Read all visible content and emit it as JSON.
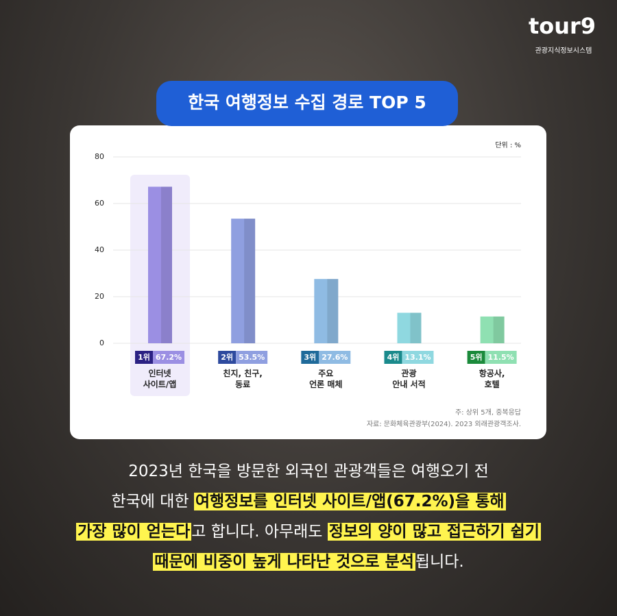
{
  "logo": {
    "brand": "tour9",
    "tagline": "관광지식정보시스템"
  },
  "chart_data": {
    "type": "bar",
    "title": "한국 여행정보 수집 경로 TOP 5",
    "unit": "단위 : %",
    "categories": [
      "인터넷\n사이트/앱",
      "친지, 친구,\n동료",
      "주요\n언론 매체",
      "관광\n안내 서적",
      "항공사,\n호텔"
    ],
    "ranks": [
      "1위",
      "2위",
      "3위",
      "4위",
      "5위"
    ],
    "values": [
      67.2,
      53.5,
      27.6,
      13.1,
      11.5
    ],
    "value_labels": [
      "67.2%",
      "53.5%",
      "27.6%",
      "13.1%",
      "11.5%"
    ],
    "colors": [
      "#9b8fe3",
      "#8f9fe0",
      "#8fbbe3",
      "#8fd8e0",
      "#8fe0b2"
    ],
    "rank_colors": [
      "#2b2183",
      "#2e4a9e",
      "#1f6a9a",
      "#1a8a8c",
      "#1b8a3b"
    ],
    "ylim": [
      0,
      80
    ],
    "yticks": [
      0,
      20,
      40,
      60,
      80
    ],
    "grid": true,
    "note": "주: 상위 5개, 중복응답",
    "source": "자료: 문화체육관광부(2024). 2023 외래관광객조사."
  },
  "description": [
    [
      {
        "text": "2023년 한국을 방문한 외국인 관광객들은 여행오기 전",
        "highlight": false
      }
    ],
    [
      {
        "text": "한국에 대한 ",
        "highlight": false
      },
      {
        "text": "여행정보를 인터넷 사이트/앱(67.2%)을 통해",
        "highlight": true
      }
    ],
    [
      {
        "text": "가장 많이 얻는다",
        "highlight": true
      },
      {
        "text": "고 합니다. 아무래도 ",
        "highlight": false
      },
      {
        "text": "정보의 양이 많고 접근하기 쉽기",
        "highlight": true
      }
    ],
    [
      {
        "text": "때문에 비중이 높게 나타난 것으로 분석",
        "highlight": true
      },
      {
        "text": "됩니다.",
        "highlight": false
      }
    ]
  ]
}
